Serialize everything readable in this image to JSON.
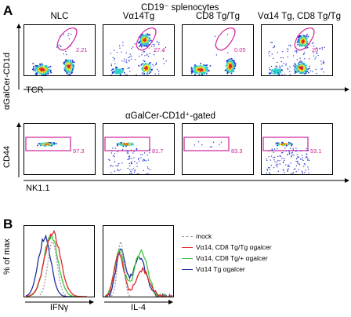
{
  "panel_a": {
    "letter": "A",
    "header": "CD19⁻ splenocytes",
    "columns": [
      "NLC",
      "Vα14Tg",
      "CD8 Tg/Tg",
      "Vα14 Tg, CD8 Tg/Tg"
    ],
    "row1": {
      "y_label": "αGalCer-CD1d",
      "x_label": "TCR",
      "percentages": [
        "2.21",
        "27.4",
        "0.05",
        "20"
      ]
    },
    "row2": {
      "header": "αGalCer-CD1d⁺-gated",
      "y_label": "CD44",
      "x_label": "NK1.1",
      "percentages": [
        "97.3",
        "81.7",
        "83.3",
        "53.1"
      ]
    }
  },
  "panel_b": {
    "letter": "B",
    "y_label": "% of max",
    "x_labels": [
      "IFNγ",
      "IL-4"
    ],
    "legend": [
      {
        "label": "mock",
        "color": "#9a9a9a",
        "style": "dashed"
      },
      {
        "label": "Vα14, CD8 Tg/Tg αgalcer",
        "color": "#e0262b",
        "style": "solid"
      },
      {
        "label": "Vα14, CD8 Tg/+ αgalcer",
        "color": "#3ec63e",
        "style": "solid"
      },
      {
        "label": "Vα14 Tg αgalcer",
        "color": "#1f2f9a",
        "style": "solid"
      }
    ]
  },
  "colors": {
    "gate": "#d0209b",
    "density_low": "#1f2fd0",
    "density_mid": "#2fd0c8",
    "density_high": "#e8e020",
    "density_peak": "#e0262b"
  }
}
